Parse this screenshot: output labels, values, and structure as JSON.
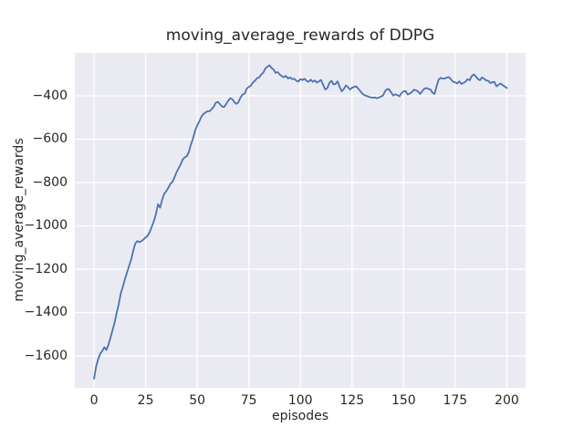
{
  "chart_data": {
    "type": "line",
    "title": "moving_average_rewards of DDPG",
    "xlabel": "episodes",
    "ylabel": "moving_average_rewards",
    "x_ticks": [
      0,
      25,
      50,
      75,
      100,
      125,
      150,
      175,
      200
    ],
    "y_ticks": [
      -400,
      -600,
      -800,
      -1000,
      -1200,
      -1400,
      -1600
    ],
    "xlim": [
      -9.3,
      209.1
    ],
    "ylim": [
      -1747,
      -202
    ],
    "grid": true,
    "legend_position": "none",
    "colors": {
      "figure_bg": "#ffffff",
      "plot_bg": "#eaeaf2",
      "grid": "#ffffff",
      "text": "#262626",
      "line": "#4c72b0"
    },
    "series": [
      {
        "name": "moving_average_rewards",
        "color": "#4c72b0",
        "points": [
          [
            0,
            -1705
          ],
          [
            1,
            -1650
          ],
          [
            2,
            -1615
          ],
          [
            3,
            -1590
          ],
          [
            4,
            -1577
          ],
          [
            5,
            -1560
          ],
          [
            6,
            -1572
          ],
          [
            7,
            -1548
          ],
          [
            8,
            -1515
          ],
          [
            9,
            -1480
          ],
          [
            10,
            -1445
          ],
          [
            11,
            -1400
          ],
          [
            12,
            -1360
          ],
          [
            13,
            -1310
          ],
          [
            14,
            -1280
          ],
          [
            15,
            -1245
          ],
          [
            16,
            -1215
          ],
          [
            17,
            -1185
          ],
          [
            18,
            -1155
          ],
          [
            19,
            -1115
          ],
          [
            20,
            -1081
          ],
          [
            21,
            -1070
          ],
          [
            22,
            -1075
          ],
          [
            23,
            -1070
          ],
          [
            24,
            -1063
          ],
          [
            25,
            -1053
          ],
          [
            26,
            -1045
          ],
          [
            27,
            -1028
          ],
          [
            28,
            -1003
          ],
          [
            29,
            -978
          ],
          [
            30,
            -945
          ],
          [
            31,
            -900
          ],
          [
            32,
            -916
          ],
          [
            33,
            -880
          ],
          [
            34,
            -852
          ],
          [
            35,
            -840
          ],
          [
            36,
            -824
          ],
          [
            37,
            -806
          ],
          [
            38,
            -797
          ],
          [
            39,
            -776
          ],
          [
            40,
            -752
          ],
          [
            41,
            -734
          ],
          [
            42,
            -716
          ],
          [
            43,
            -693
          ],
          [
            44,
            -684
          ],
          [
            45,
            -678
          ],
          [
            46,
            -658
          ],
          [
            47,
            -622
          ],
          [
            48,
            -596
          ],
          [
            49,
            -560
          ],
          [
            50,
            -537
          ],
          [
            51,
            -518
          ],
          [
            52,
            -497
          ],
          [
            53,
            -484
          ],
          [
            54,
            -477
          ],
          [
            55,
            -471
          ],
          [
            56,
            -471
          ],
          [
            57,
            -461
          ],
          [
            58,
            -450
          ],
          [
            59,
            -432
          ],
          [
            60,
            -428
          ],
          [
            61,
            -438
          ],
          [
            62,
            -449
          ],
          [
            63,
            -452
          ],
          [
            64,
            -438
          ],
          [
            65,
            -423
          ],
          [
            66,
            -411
          ],
          [
            67,
            -415
          ],
          [
            68,
            -429
          ],
          [
            69,
            -437
          ],
          [
            70,
            -429
          ],
          [
            71,
            -407
          ],
          [
            72,
            -394
          ],
          [
            73,
            -390
          ],
          [
            74,
            -366
          ],
          [
            75,
            -359
          ],
          [
            76,
            -353
          ],
          [
            77,
            -338
          ],
          [
            78,
            -330
          ],
          [
            79,
            -318
          ],
          [
            80,
            -315
          ],
          [
            81,
            -302
          ],
          [
            82,
            -293
          ],
          [
            83,
            -274
          ],
          [
            84,
            -266
          ],
          [
            85,
            -259
          ],
          [
            86,
            -271
          ],
          [
            87,
            -279
          ],
          [
            88,
            -294
          ],
          [
            89,
            -290
          ],
          [
            90,
            -302
          ],
          [
            91,
            -309
          ],
          [
            92,
            -314
          ],
          [
            93,
            -308
          ],
          [
            94,
            -320
          ],
          [
            95,
            -315
          ],
          [
            96,
            -323
          ],
          [
            97,
            -321
          ],
          [
            98,
            -330
          ],
          [
            99,
            -334
          ],
          [
            100,
            -323
          ],
          [
            101,
            -327
          ],
          [
            102,
            -321
          ],
          [
            103,
            -331
          ],
          [
            104,
            -335
          ],
          [
            105,
            -325
          ],
          [
            106,
            -335
          ],
          [
            107,
            -329
          ],
          [
            108,
            -339
          ],
          [
            109,
            -333
          ],
          [
            110,
            -327
          ],
          [
            111,
            -349
          ],
          [
            112,
            -371
          ],
          [
            113,
            -365
          ],
          [
            114,
            -341
          ],
          [
            115,
            -330
          ],
          [
            116,
            -347
          ],
          [
            117,
            -345
          ],
          [
            118,
            -333
          ],
          [
            119,
            -359
          ],
          [
            120,
            -379
          ],
          [
            121,
            -369
          ],
          [
            122,
            -352
          ],
          [
            123,
            -359
          ],
          [
            124,
            -371
          ],
          [
            125,
            -363
          ],
          [
            126,
            -359
          ],
          [
            127,
            -356
          ],
          [
            128,
            -367
          ],
          [
            129,
            -378
          ],
          [
            130,
            -390
          ],
          [
            131,
            -397
          ],
          [
            132,
            -400
          ],
          [
            133,
            -404
          ],
          [
            134,
            -407
          ],
          [
            135,
            -409
          ],
          [
            136,
            -407
          ],
          [
            137,
            -411
          ],
          [
            138,
            -408
          ],
          [
            139,
            -403
          ],
          [
            140,
            -399
          ],
          [
            141,
            -379
          ],
          [
            142,
            -369
          ],
          [
            143,
            -370
          ],
          [
            144,
            -385
          ],
          [
            145,
            -399
          ],
          [
            146,
            -393
          ],
          [
            147,
            -397
          ],
          [
            148,
            -402
          ],
          [
            149,
            -387
          ],
          [
            150,
            -379
          ],
          [
            151,
            -378
          ],
          [
            152,
            -394
          ],
          [
            153,
            -389
          ],
          [
            154,
            -383
          ],
          [
            155,
            -372
          ],
          [
            156,
            -374
          ],
          [
            157,
            -380
          ],
          [
            158,
            -391
          ],
          [
            159,
            -379
          ],
          [
            160,
            -367
          ],
          [
            161,
            -364
          ],
          [
            162,
            -368
          ],
          [
            163,
            -371
          ],
          [
            164,
            -386
          ],
          [
            165,
            -391
          ],
          [
            166,
            -355
          ],
          [
            167,
            -324
          ],
          [
            168,
            -317
          ],
          [
            169,
            -321
          ],
          [
            170,
            -320
          ],
          [
            171,
            -315
          ],
          [
            172,
            -314
          ],
          [
            173,
            -325
          ],
          [
            174,
            -335
          ],
          [
            175,
            -338
          ],
          [
            176,
            -343
          ],
          [
            177,
            -333
          ],
          [
            178,
            -345
          ],
          [
            179,
            -340
          ],
          [
            180,
            -335
          ],
          [
            181,
            -323
          ],
          [
            182,
            -328
          ],
          [
            183,
            -309
          ],
          [
            184,
            -301
          ],
          [
            185,
            -311
          ],
          [
            186,
            -322
          ],
          [
            187,
            -328
          ],
          [
            188,
            -315
          ],
          [
            189,
            -321
          ],
          [
            190,
            -329
          ],
          [
            191,
            -330
          ],
          [
            192,
            -341
          ],
          [
            193,
            -337
          ],
          [
            194,
            -336
          ],
          [
            195,
            -356
          ],
          [
            196,
            -349
          ],
          [
            197,
            -343
          ],
          [
            198,
            -351
          ],
          [
            199,
            -357
          ],
          [
            200,
            -364
          ]
        ]
      }
    ]
  }
}
